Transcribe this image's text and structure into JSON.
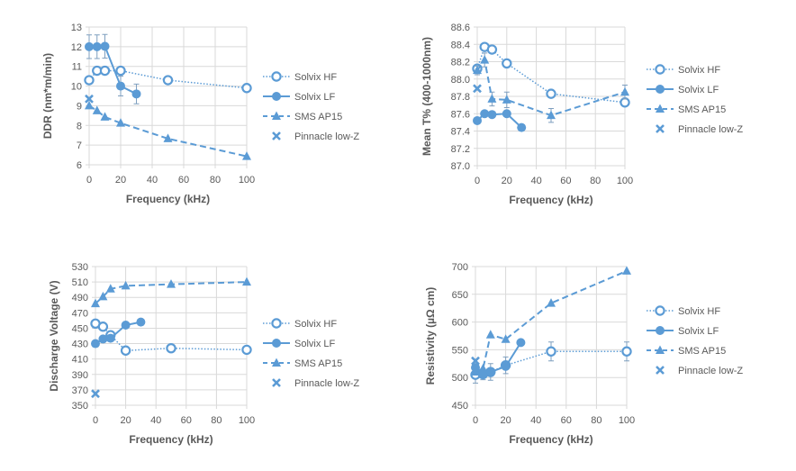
{
  "figure_title": "",
  "series_styles": {
    "Solvix HF": {
      "color": "#5B9BD5",
      "marker": "open-circle",
      "line": "dotted"
    },
    "Solvix LF": {
      "color": "#5B9BD5",
      "marker": "filled-circle",
      "line": "solid"
    },
    "SMS AP15": {
      "color": "#5B9BD5",
      "marker": "triangle",
      "line": "dashed"
    },
    "Pinnacle low-Z": {
      "color": "#5B9BD5",
      "marker": "x",
      "line": "none"
    }
  },
  "legend": [
    "Solvix HF",
    "Solvix LF",
    "SMS AP15",
    "Pinnacle low-Z"
  ],
  "chart_data": [
    {
      "type": "line",
      "title": "",
      "xlabel": "Frequency (kHz)",
      "ylabel": "DDR  (nm*m/min)",
      "xlim": [
        0,
        100
      ],
      "ylim": [
        6,
        13
      ],
      "xticks": [
        0,
        20,
        40,
        60,
        80,
        100
      ],
      "yticks": [
        6,
        7,
        8,
        9,
        10,
        11,
        12,
        13
      ],
      "ytick_decimals": 0,
      "grid": true,
      "legend_position": "right",
      "series": [
        {
          "name": "Solvix HF",
          "x": [
            0,
            5,
            10,
            20,
            50,
            100
          ],
          "y": [
            10.3,
            10.78,
            10.78,
            10.78,
            10.3,
            9.9
          ]
        },
        {
          "name": "Solvix LF",
          "x": [
            0,
            5,
            10,
            20,
            30
          ],
          "y": [
            12.0,
            12.0,
            12.02,
            10.0,
            9.6
          ],
          "err": [
            0.6,
            0.6,
            0.6,
            0.5,
            0.5
          ]
        },
        {
          "name": "SMS AP15",
          "x": [
            0,
            5,
            10,
            20,
            50,
            100
          ],
          "y": [
            9.0,
            8.75,
            8.43,
            8.12,
            7.33,
            6.43
          ]
        },
        {
          "name": "Pinnacle low-Z",
          "x": [
            0
          ],
          "y": [
            9.35
          ]
        }
      ]
    },
    {
      "type": "line",
      "title": "",
      "xlabel": "Frequency (kHz)",
      "ylabel": "Mean T% (400-1000nm)",
      "xlim": [
        0,
        100
      ],
      "ylim": [
        87.0,
        88.6
      ],
      "xticks": [
        0,
        20,
        40,
        60,
        80,
        100
      ],
      "yticks": [
        87.0,
        87.2,
        87.4,
        87.6,
        87.8,
        88.0,
        88.2,
        88.4,
        88.6
      ],
      "ytick_decimals": 1,
      "grid": true,
      "legend_position": "right",
      "series": [
        {
          "name": "Solvix HF",
          "x": [
            0,
            5,
            10,
            20,
            50,
            100
          ],
          "y": [
            88.12,
            88.37,
            88.34,
            88.18,
            87.83,
            87.73
          ]
        },
        {
          "name": "Solvix LF",
          "x": [
            0,
            5,
            10,
            20,
            30
          ],
          "y": [
            87.52,
            87.6,
            87.59,
            87.6,
            87.44
          ]
        },
        {
          "name": "SMS AP15",
          "x": [
            0,
            5,
            10,
            20,
            50,
            100
          ],
          "y": [
            88.1,
            88.22,
            87.77,
            87.76,
            87.58,
            87.85
          ],
          "err": [
            0.05,
            0.08,
            0.08,
            0.09,
            0.08,
            0.08
          ]
        },
        {
          "name": "Pinnacle low-Z",
          "x": [
            0
          ],
          "y": [
            87.89
          ]
        }
      ]
    },
    {
      "type": "line",
      "title": "",
      "xlabel": "Frequency (kHz)",
      "ylabel": "Discharge Voltage (V)",
      "xlim": [
        0,
        100
      ],
      "ylim": [
        350,
        530
      ],
      "xticks": [
        0,
        20,
        40,
        60,
        80,
        100
      ],
      "yticks": [
        350,
        370,
        390,
        410,
        430,
        450,
        470,
        490,
        510,
        530
      ],
      "ytick_decimals": 0,
      "grid": true,
      "legend_position": "right",
      "series": [
        {
          "name": "Solvix HF",
          "x": [
            0,
            5,
            10,
            20,
            50,
            100
          ],
          "y": [
            456,
            452,
            441,
            421,
            424,
            422
          ]
        },
        {
          "name": "Solvix LF",
          "x": [
            0,
            5,
            10,
            20,
            30
          ],
          "y": [
            430,
            436,
            437,
            454,
            458
          ]
        },
        {
          "name": "SMS AP15",
          "x": [
            0,
            5,
            10,
            20,
            50,
            100
          ],
          "y": [
            482,
            491,
            501,
            505,
            507,
            510
          ]
        },
        {
          "name": "Pinnacle low-Z",
          "x": [
            0
          ],
          "y": [
            365
          ]
        }
      ]
    },
    {
      "type": "line",
      "title": "",
      "xlabel": "Frequency (kHz)",
      "ylabel": "Resistivity (µΩ cm)",
      "xlim": [
        0,
        100
      ],
      "ylim": [
        450,
        700
      ],
      "xticks": [
        0,
        20,
        40,
        60,
        80,
        100
      ],
      "yticks": [
        450,
        500,
        550,
        600,
        650,
        700
      ],
      "ytick_decimals": 0,
      "grid": true,
      "legend_position": "right",
      "series": [
        {
          "name": "Solvix HF",
          "x": [
            0,
            5,
            10,
            20,
            50,
            100
          ],
          "y": [
            505,
            506,
            510,
            522,
            547,
            547
          ],
          "err": [
            15,
            10,
            15,
            15,
            17,
            17
          ]
        },
        {
          "name": "Solvix LF",
          "x": [
            0,
            5,
            10,
            20,
            30
          ],
          "y": [
            518,
            505,
            510,
            520,
            563
          ]
        },
        {
          "name": "SMS AP15",
          "x": [
            0,
            5,
            10,
            20,
            50,
            100
          ],
          "y": [
            510,
            516,
            577,
            569,
            634,
            692
          ]
        },
        {
          "name": "Pinnacle low-Z",
          "x": [
            0
          ],
          "y": [
            530
          ]
        }
      ]
    }
  ]
}
